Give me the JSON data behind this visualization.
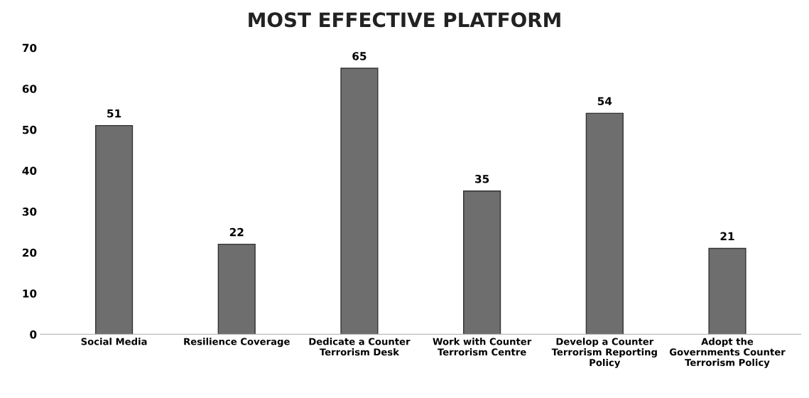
{
  "chart_data": {
    "type": "bar",
    "title": "MOST EFFECTIVE PLATFORM",
    "categories": [
      "Social Media",
      "Resilience Coverage",
      "Dedicate a Counter Terrorism Desk",
      "Work with Counter Terrorism Centre",
      "Develop a Counter Terrorism Reporting Policy",
      "Adopt the Governments Counter Terrorism Policy"
    ],
    "values": [
      51,
      22,
      65,
      35,
      54,
      21
    ],
    "color": "#6e6e6e",
    "ylim": [
      0,
      70
    ],
    "yticks": [
      0,
      10,
      20,
      30,
      40,
      50,
      60,
      70
    ],
    "data_labels": true,
    "grid": false
  }
}
